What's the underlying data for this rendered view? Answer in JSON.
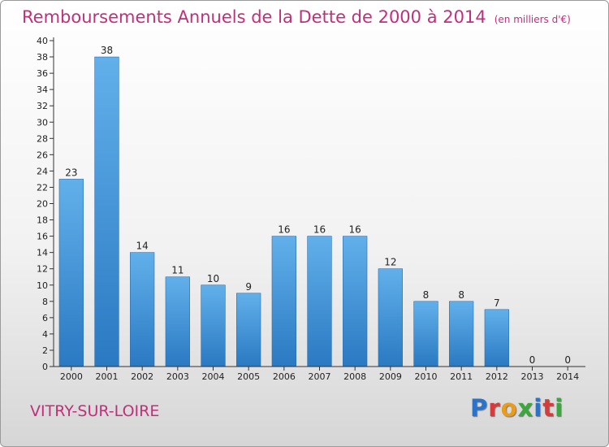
{
  "header": {
    "title": "Remboursements Annuels de la Dette de 2000 à 2014",
    "unit": "(en milliers d'€)"
  },
  "footer": {
    "place": "VITRY-SUR-LOIRE",
    "logo": [
      "P",
      "r",
      "o",
      "x",
      "i",
      "t",
      "i"
    ],
    "logo_colors": [
      "#2a73c9",
      "#d63a3a",
      "#e89b1c",
      "#3aa83a",
      "#2a73c9",
      "#d63a3a",
      "#3aa83a"
    ]
  },
  "chart_data": {
    "type": "bar",
    "title": "Remboursements Annuels de la Dette de 2000 à 2014",
    "categories": [
      "2000",
      "2001",
      "2002",
      "2003",
      "2004",
      "2005",
      "2006",
      "2007",
      "2008",
      "2009",
      "2010",
      "2011",
      "2012",
      "2013",
      "2014"
    ],
    "values": [
      23,
      38,
      14,
      11,
      10,
      9,
      16,
      16,
      16,
      12,
      8,
      8,
      7,
      0,
      0
    ],
    "ylim": [
      0,
      40
    ],
    "yticks": [
      0,
      2,
      4,
      6,
      8,
      10,
      12,
      14,
      16,
      18,
      20,
      22,
      24,
      26,
      28,
      30,
      32,
      34,
      36,
      38,
      40
    ],
    "grid": false,
    "bar_color_top": "#62b0ea",
    "bar_color_bottom": "#2a79c2"
  }
}
